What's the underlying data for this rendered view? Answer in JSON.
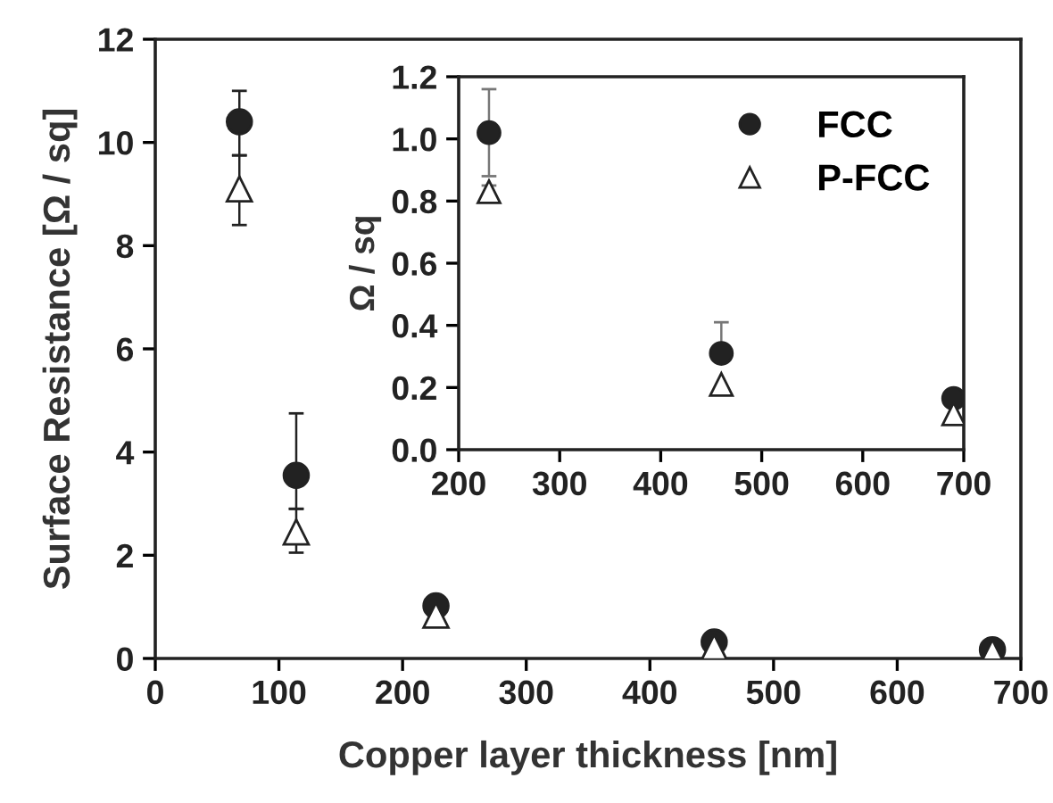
{
  "chart_data": [
    {
      "type": "scatter",
      "xlabel": "Copper layer thickness [nm]",
      "ylabel": "Surface Resistance [Ω / sq]",
      "x": [
        68,
        114,
        227,
        452,
        677
      ],
      "xlim": [
        0,
        700
      ],
      "xticks": [
        0,
        100,
        200,
        300,
        400,
        500,
        600,
        700
      ],
      "ylim": [
        0,
        12
      ],
      "yticks": [
        0,
        2,
        4,
        6,
        8,
        10,
        12
      ],
      "grid": false,
      "legend": false,
      "series": [
        {
          "color": "#222222",
          "marker": "circle",
          "values": [
            10.4,
            3.55,
            1.02,
            0.32,
            0.17
          ],
          "errors": [
            [
              9.75,
              11.0
            ],
            [
              2.9,
              4.75
            ],
            null,
            null,
            null
          ]
        },
        {
          "color": "#222222",
          "marker": "triangle",
          "values": [
            9.1,
            2.45,
            0.84,
            0.22,
            0.12
          ],
          "errors": [
            [
              8.4,
              9.75
            ],
            [
              2.05,
              2.9
            ],
            null,
            null,
            null
          ]
        }
      ]
    },
    {
      "type": "scatter",
      "ylabel": "Ω / sq",
      "x": [
        230,
        460,
        690
      ],
      "xlim": [
        200,
        700
      ],
      "xticks": [
        200,
        300,
        400,
        500,
        600,
        700
      ],
      "ylim": [
        0,
        1.2
      ],
      "yticks": [
        {
          "value": 0,
          "label": "0.0"
        },
        {
          "value": 0.2,
          "label": "0.2"
        },
        {
          "value": 0.4,
          "label": "0.4"
        },
        {
          "value": 0.6,
          "label": "0.6"
        },
        {
          "value": 0.8,
          "label": "0.8"
        },
        {
          "value": 1.0,
          "label": "1.0"
        },
        {
          "value": 1.2,
          "label": "1.2"
        }
      ],
      "grid": false,
      "legend": "top right",
      "series": [
        {
          "name": "FCC",
          "color": "#222222",
          "marker": "circle",
          "values": [
            1.02,
            0.31,
            0.165
          ],
          "errors": [
            [
              0.88,
              1.16
            ],
            [
              0.31,
              0.41
            ],
            null
          ]
        },
        {
          "name": "P-FCC",
          "color": "#222222",
          "marker": "triangle",
          "values": [
            0.83,
            0.21,
            0.115
          ],
          "errors": [
            [
              0.81,
              0.85
            ],
            null,
            null
          ]
        }
      ]
    }
  ]
}
